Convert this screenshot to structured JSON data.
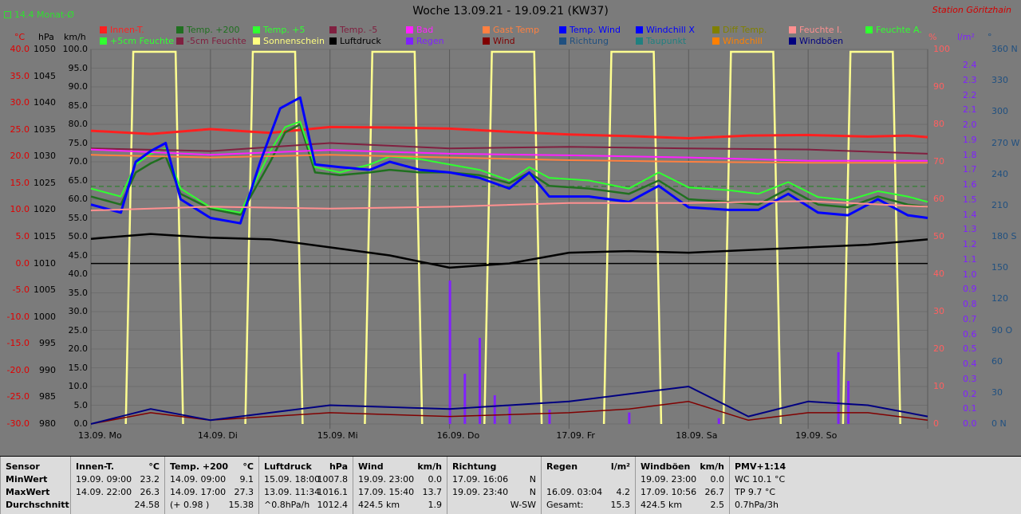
{
  "title": "Woche 13.09.21 - 19.09.21 (KW37)",
  "station": "Station Göritzhain",
  "month_note": "14.4 Monat-Ø",
  "legend": [
    {
      "label": "Innen-T.",
      "color": "#ff2020"
    },
    {
      "label": "Temp. +200",
      "color": "#207020"
    },
    {
      "label": "Temp. +5",
      "color": "#30ff30"
    },
    {
      "label": "Temp. -5",
      "color": "#802040"
    },
    {
      "label": "Bad",
      "color": "#ff20ff"
    },
    {
      "label": "Gast Temp",
      "color": "#ff8040"
    },
    {
      "label": "Temp. Wind",
      "color": "#0000ff"
    },
    {
      "label": "Windchill X",
      "color": "#0000ff"
    },
    {
      "label": "Diff Temp.",
      "color": "#808000"
    },
    {
      "label": "Feuchte I.",
      "color": "#ff9090"
    },
    {
      "label": "Feuchte A.",
      "color": "#30ff30"
    },
    {
      "label": "+5cm Feuchte",
      "color": "#30ff30"
    },
    {
      "label": "-5cm Feuchte",
      "color": "#802040"
    },
    {
      "label": "Sonnenschein",
      "color": "#ffff80"
    },
    {
      "label": "Luftdruck",
      "color": "#000000"
    },
    {
      "label": "Regen",
      "color": "#8020ff"
    },
    {
      "label": "Wind",
      "color": "#800000"
    },
    {
      "label": "Richtung",
      "color": "#205080"
    },
    {
      "label": "Taupunkt",
      "color": "#208080"
    },
    {
      "label": "Windchill",
      "color": "#ff8000"
    },
    {
      "label": "Windböen",
      "color": "#000080"
    }
  ],
  "axes": {
    "temp_unit": "°C",
    "pressure_unit": "hPa",
    "wind_unit": "km/h",
    "hum_unit": "%",
    "rain_unit": "l/m²",
    "dir_unit": "°",
    "temp_ticks": [
      "40.0",
      "35.0",
      "30.0",
      "25.0",
      "20.0",
      "15.0",
      "10.0",
      "5.0",
      "0.0",
      "-5.0",
      "-10.0",
      "-15.0",
      "-20.0",
      "-25.0",
      "-30.0"
    ],
    "pressure_ticks": [
      "1050",
      "1045",
      "1040",
      "1035",
      "1030",
      "1025",
      "1020",
      "1015",
      "1010",
      "1005",
      "1000",
      "995",
      "990",
      "985",
      "980"
    ],
    "wind_ticks": [
      "100.0",
      "95.0",
      "90.0",
      "85.0",
      "80.0",
      "75.0",
      "70.0",
      "65.0",
      "60.0",
      "55.0",
      "50.0",
      "45.0",
      "40.0",
      "35.0",
      "30.0",
      "25.0",
      "20.0",
      "15.0",
      "10.0",
      "5.0",
      "0.0"
    ],
    "hum_ticks": [
      "100",
      "90",
      "80",
      "70",
      "60",
      "50",
      "40",
      "30",
      "20",
      "10",
      "0"
    ],
    "rain_ticks": [
      "2.4",
      "2.3",
      "2.2",
      "2.1",
      "2.0",
      "1.9",
      "1.8",
      "1.7",
      "1.6",
      "1.5",
      "1.4",
      "1.3",
      "1.2",
      "1.1",
      "1.0",
      "0.9",
      "0.8",
      "0.7",
      "0.6",
      "0.5",
      "0.4",
      "0.3",
      "0.2",
      "0.1",
      "0.0"
    ],
    "dir_ticks": [
      "360 N",
      "330",
      "300",
      "270 W",
      "240",
      "210",
      "180 S",
      "150",
      "120",
      "90 O",
      "60",
      "30",
      "0 N"
    ],
    "days": [
      "13.09.  Mo",
      "14.09.  Di",
      "15.09.  Mi",
      "16.09.  Do",
      "17.09.  Fr",
      "18.09.  Sa",
      "19.09.  So"
    ]
  },
  "chart_data": {
    "type": "line",
    "x_days": [
      "13.09.",
      "14.09.",
      "15.09.",
      "16.09.",
      "17.09.",
      "18.09.",
      "19.09."
    ],
    "x_hours_range": [
      0,
      168
    ],
    "ylim_temp": [
      -30,
      40
    ],
    "ylim_pressure": [
      980,
      1050
    ],
    "ylim_wind": [
      0,
      100
    ],
    "ylim_humidity": [
      0,
      100
    ],
    "ylim_rain": [
      0,
      2.5
    ],
    "ylim_direction": [
      0,
      360
    ],
    "series": [
      {
        "name": "Innen-T.",
        "axis": "temp",
        "points": [
          [
            0,
            24.8
          ],
          [
            12,
            24.2
          ],
          [
            24,
            25.1
          ],
          [
            36,
            24.4
          ],
          [
            48,
            25.5
          ],
          [
            60,
            25.4
          ],
          [
            72,
            25.2
          ],
          [
            84,
            24.6
          ],
          [
            96,
            24.1
          ],
          [
            108,
            23.8
          ],
          [
            120,
            23.4
          ],
          [
            132,
            23.9
          ],
          [
            144,
            24.0
          ],
          [
            156,
            23.7
          ],
          [
            164,
            23.9
          ],
          [
            168,
            23.6
          ]
        ]
      },
      {
        "name": "Temp. +200",
        "axis": "temp",
        "points": [
          [
            0,
            12.5
          ],
          [
            6,
            11
          ],
          [
            9,
            17
          ],
          [
            12,
            18.7
          ],
          [
            15,
            20
          ],
          [
            18,
            13
          ],
          [
            24,
            10.2
          ],
          [
            30,
            9.1
          ],
          [
            36,
            19
          ],
          [
            39,
            24.5
          ],
          [
            42,
            26
          ],
          [
            45,
            17
          ],
          [
            50,
            16.5
          ],
          [
            56,
            17
          ],
          [
            60,
            17.5
          ],
          [
            66,
            17
          ],
          [
            72,
            17
          ],
          [
            78,
            16.5
          ],
          [
            84,
            15
          ],
          [
            88,
            17
          ],
          [
            92,
            14.5
          ],
          [
            100,
            14
          ],
          [
            108,
            13
          ],
          [
            114,
            15.5
          ],
          [
            120,
            12
          ],
          [
            128,
            11.5
          ],
          [
            134,
            11
          ],
          [
            140,
            14
          ],
          [
            146,
            11
          ],
          [
            152,
            10.5
          ],
          [
            158,
            12.5
          ],
          [
            164,
            11
          ],
          [
            168,
            10.6
          ]
        ]
      },
      {
        "name": "Temp. +5",
        "axis": "temp",
        "points": [
          [
            0,
            14
          ],
          [
            6,
            12.5
          ],
          [
            9,
            18.5
          ],
          [
            12,
            20.5
          ],
          [
            15,
            21.5
          ],
          [
            18,
            14
          ],
          [
            24,
            10.5
          ],
          [
            30,
            9.5
          ],
          [
            36,
            21
          ],
          [
            39,
            25.5
          ],
          [
            42,
            26.5
          ],
          [
            45,
            18
          ],
          [
            50,
            17
          ],
          [
            56,
            18.5
          ],
          [
            60,
            20
          ],
          [
            66,
            19.5
          ],
          [
            72,
            18.5
          ],
          [
            78,
            17.5
          ],
          [
            84,
            15.5
          ],
          [
            88,
            18
          ],
          [
            92,
            16
          ],
          [
            100,
            15.5
          ],
          [
            108,
            14
          ],
          [
            114,
            17
          ],
          [
            120,
            14.2
          ],
          [
            128,
            13.7
          ],
          [
            134,
            13
          ],
          [
            140,
            15.2
          ],
          [
            146,
            12.4
          ],
          [
            152,
            11.8
          ],
          [
            158,
            13.5
          ],
          [
            164,
            12.5
          ],
          [
            168,
            11.5
          ]
        ]
      },
      {
        "name": "Temp. -5",
        "axis": "temp",
        "points": [
          [
            0,
            21.5
          ],
          [
            24,
            21
          ],
          [
            48,
            22.5
          ],
          [
            72,
            21.5
          ],
          [
            96,
            21.8
          ],
          [
            120,
            21.5
          ],
          [
            144,
            21.3
          ],
          [
            168,
            20.5
          ]
        ]
      },
      {
        "name": "Bad",
        "axis": "temp",
        "points": [
          [
            0,
            21.3
          ],
          [
            24,
            20.3
          ],
          [
            48,
            21.2
          ],
          [
            72,
            20.5
          ],
          [
            96,
            20.2
          ],
          [
            120,
            19.8
          ],
          [
            144,
            19.2
          ],
          [
            168,
            19.2
          ]
        ]
      },
      {
        "name": "Gast Temp",
        "axis": "temp",
        "points": [
          [
            0,
            20.3
          ],
          [
            24,
            19.8
          ],
          [
            48,
            20.3
          ],
          [
            72,
            19.8
          ],
          [
            96,
            19.3
          ],
          [
            120,
            19.0
          ],
          [
            144,
            18.8
          ],
          [
            168,
            18.8
          ]
        ]
      },
      {
        "name": "Temp. Wind",
        "axis": "temp",
        "points": [
          [
            0,
            11
          ],
          [
            6,
            9.5
          ],
          [
            9,
            19
          ],
          [
            12,
            21
          ],
          [
            15,
            22.5
          ],
          [
            18,
            12
          ],
          [
            24,
            8.5
          ],
          [
            30,
            7.5
          ],
          [
            34,
            19
          ],
          [
            38,
            29
          ],
          [
            42,
            31
          ],
          [
            45,
            18.5
          ],
          [
            50,
            18
          ],
          [
            56,
            17.5
          ],
          [
            60,
            19
          ],
          [
            66,
            17.5
          ],
          [
            72,
            17
          ],
          [
            78,
            16
          ],
          [
            84,
            14
          ],
          [
            88,
            17
          ],
          [
            92,
            12.5
          ],
          [
            100,
            12.5
          ],
          [
            108,
            11.5
          ],
          [
            114,
            14.5
          ],
          [
            120,
            10.5
          ],
          [
            128,
            10
          ],
          [
            134,
            10
          ],
          [
            140,
            13
          ],
          [
            146,
            9.5
          ],
          [
            152,
            9
          ],
          [
            158,
            12
          ],
          [
            164,
            9
          ],
          [
            168,
            8.5
          ]
        ]
      },
      {
        "name": "Luftdruck",
        "axis": "pressure",
        "points": [
          [
            0,
            1014.6
          ],
          [
            12,
            1015.5
          ],
          [
            24,
            1014.8
          ],
          [
            36,
            1014.5
          ],
          [
            48,
            1013
          ],
          [
            60,
            1011.5
          ],
          [
            72,
            1009.2
          ],
          [
            84,
            1010
          ],
          [
            96,
            1012
          ],
          [
            108,
            1012.3
          ],
          [
            120,
            1012
          ],
          [
            132,
            1012.5
          ],
          [
            144,
            1013
          ],
          [
            156,
            1013.5
          ],
          [
            168,
            1014.5
          ]
        ]
      },
      {
        "name": "Feuchte I.",
        "axis": "humidity",
        "points": [
          [
            0,
            57
          ],
          [
            24,
            58
          ],
          [
            48,
            57.5
          ],
          [
            72,
            58
          ],
          [
            96,
            59
          ],
          [
            120,
            59
          ],
          [
            144,
            59.5
          ],
          [
            168,
            58
          ]
        ]
      },
      {
        "name": "Wind",
        "axis": "wind",
        "points": [
          [
            0,
            0
          ],
          [
            12,
            3
          ],
          [
            24,
            1
          ],
          [
            36,
            2
          ],
          [
            48,
            3
          ],
          [
            72,
            2
          ],
          [
            96,
            3
          ],
          [
            108,
            4
          ],
          [
            120,
            6
          ],
          [
            132,
            1
          ],
          [
            144,
            3
          ],
          [
            156,
            3
          ],
          [
            168,
            1
          ]
        ]
      },
      {
        "name": "Windböen",
        "axis": "wind",
        "points": [
          [
            0,
            0
          ],
          [
            12,
            4
          ],
          [
            24,
            1
          ],
          [
            36,
            3
          ],
          [
            48,
            5
          ],
          [
            72,
            4
          ],
          [
            96,
            6
          ],
          [
            108,
            8
          ],
          [
            120,
            10
          ],
          [
            132,
            2
          ],
          [
            144,
            6
          ],
          [
            156,
            5
          ],
          [
            168,
            2
          ]
        ]
      }
    ]
  },
  "stats": {
    "headers": [
      {
        "name": "Sensor",
        "unit": ""
      },
      {
        "name": "Innen-T.",
        "unit": "°C"
      },
      {
        "name": "Temp. +200",
        "unit": "°C"
      },
      {
        "name": "Luftdruck",
        "unit": "hPa"
      },
      {
        "name": "Wind",
        "unit": "km/h"
      },
      {
        "name": "Richtung",
        "unit": ""
      },
      {
        "name": "Regen",
        "unit": "l/m²"
      },
      {
        "name": "Windböen",
        "unit": "km/h"
      },
      {
        "name": "PMV+1:14",
        "unit": ""
      }
    ],
    "row_labels": [
      "MinWert",
      "MaxWert",
      "Durchschnitt"
    ],
    "columns": [
      {
        "rows": [
          [
            "19.09.  09:00",
            "23.2"
          ],
          [
            "14.09.  22:00",
            "26.3"
          ],
          [
            "",
            "24.58"
          ]
        ]
      },
      {
        "rows": [
          [
            "14.09.  09:00",
            "9.1"
          ],
          [
            "14.09.  17:00",
            "27.3"
          ],
          [
            "(+ 0.98 )",
            "15.38"
          ]
        ]
      },
      {
        "rows": [
          [
            "15.09.  18:00",
            "1007.8"
          ],
          [
            "13.09.  11:34",
            "1016.1"
          ],
          [
            "^0.8hPa/h",
            "1012.4"
          ]
        ]
      },
      {
        "rows": [
          [
            "19.09.  23:00",
            "0.0"
          ],
          [
            "17.09.  15:40",
            "13.7"
          ],
          [
            "424.5 km",
            "1.9"
          ]
        ]
      },
      {
        "rows": [
          [
            "17.09.  16:06",
            "N"
          ],
          [
            "19.09.  23:40",
            "N"
          ],
          [
            "",
            "W-SW"
          ]
        ]
      },
      {
        "rows": [
          [
            "",
            ""
          ],
          [
            "16.09.  03:04",
            "4.2"
          ],
          [
            "Gesamt:",
            "15.3"
          ]
        ]
      },
      {
        "rows": [
          [
            "19.09.  23:00",
            "0.0"
          ],
          [
            "17.09.  10:56",
            "26.7"
          ],
          [
            "424.5 km",
            "2.5"
          ]
        ]
      },
      {
        "rows": [
          [
            "WC 10.1 °C",
            ""
          ],
          [
            "TP 9.7 °C",
            ""
          ],
          [
            "0.7hPa/3h",
            ""
          ]
        ]
      }
    ]
  }
}
